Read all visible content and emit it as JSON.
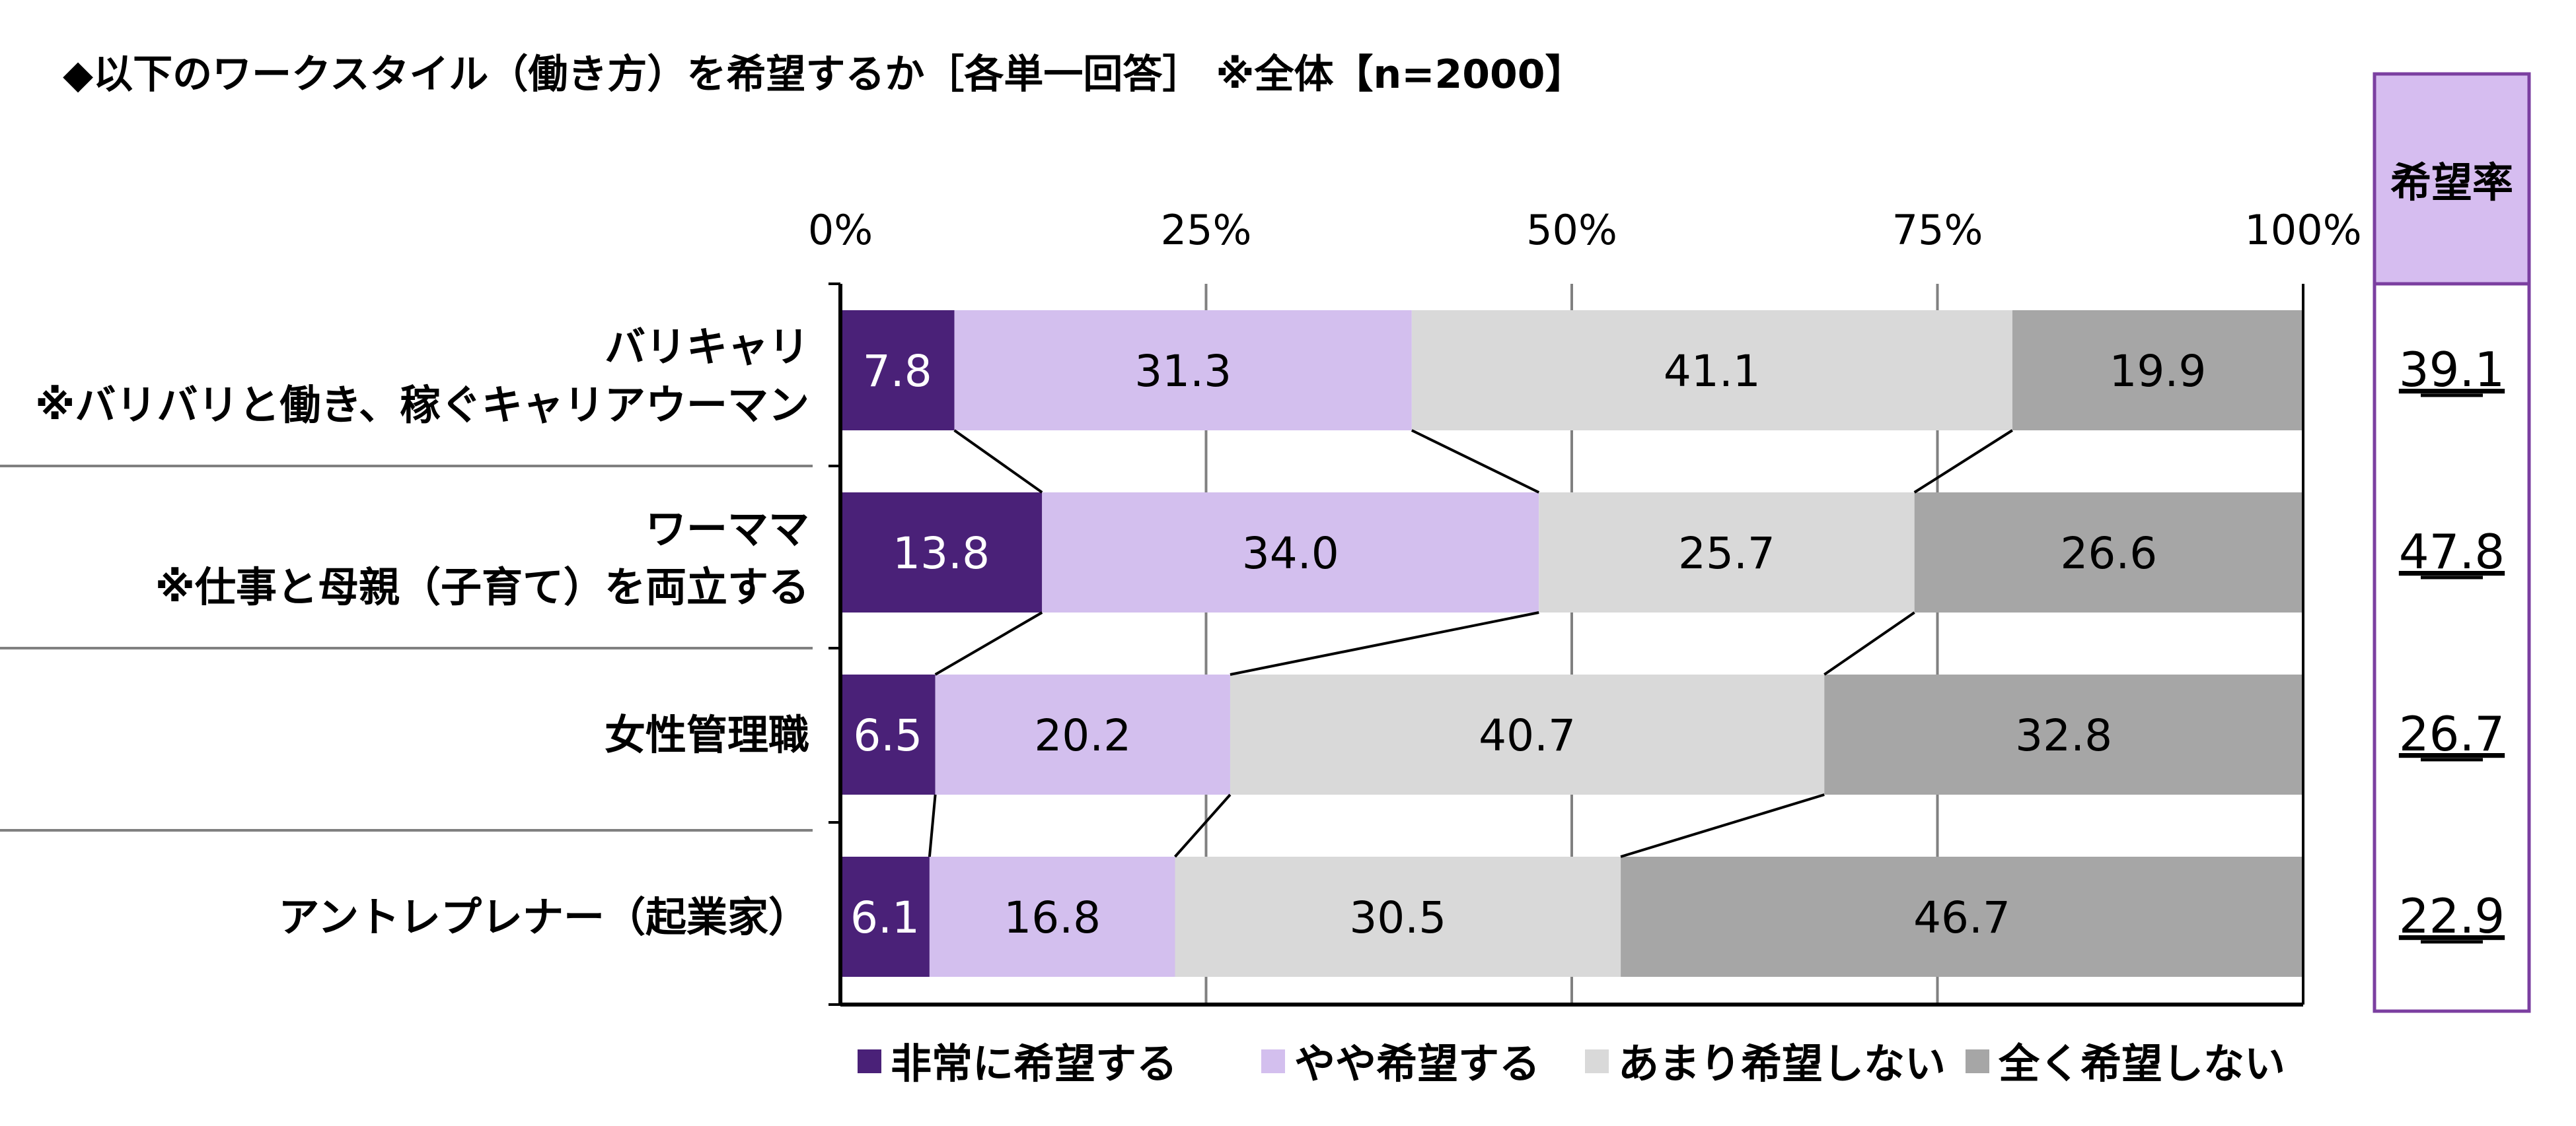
{
  "title": "◆以下のワークスタイル（働き方）を希望するか［各単一回答］ ※全体【n=2000】",
  "colors": {
    "series": [
      "#4a2178",
      "#d3bfee",
      "#d9d9d9",
      "#a6a6a6"
    ],
    "rate_header_bg": "#d6bdf0",
    "rate_border": "#7b3fa0",
    "axis": "#000000",
    "grid": "#808080",
    "connector": "#000000",
    "separator": "#808080"
  },
  "chart_data": {
    "type": "bar",
    "orientation": "horizontal",
    "stacked": true,
    "percent_stacked": true,
    "categories": [
      [
        "バリキャリ",
        "※バリバリと働き、稼ぐキャリアウーマン"
      ],
      [
        "ワーママ",
        "※仕事と母親（子育て）を両立する"
      ],
      [
        "女性管理職"
      ],
      [
        "アントレプレナー（起業家）"
      ]
    ],
    "series": [
      {
        "name": "非常に希望する",
        "values": [
          7.8,
          13.8,
          6.5,
          6.1
        ]
      },
      {
        "name": "やや希望する",
        "values": [
          31.3,
          34.0,
          20.2,
          16.8
        ]
      },
      {
        "name": "あまり希望しない",
        "values": [
          41.1,
          25.7,
          40.7,
          30.5
        ]
      },
      {
        "name": "全く希望しない",
        "values": [
          19.9,
          26.6,
          32.8,
          46.7
        ]
      }
    ],
    "value_labels": [
      [
        "7.8",
        "13.8",
        "6.5",
        "6.1"
      ],
      [
        "31.3",
        "34.0",
        "20.2",
        "16.8"
      ],
      [
        "41.1",
        "25.7",
        "40.7",
        "30.5"
      ],
      [
        "19.9",
        "26.6",
        "32.8",
        "46.7"
      ]
    ],
    "xlim": [
      0,
      100
    ],
    "ticks": [
      0,
      25,
      50,
      75,
      100
    ],
    "tick_labels": [
      "0%",
      "25%",
      "50%",
      "75%",
      "100%"
    ],
    "grid": true,
    "series_lines": true,
    "legend_position": "bottom",
    "side_table": {
      "header": "希望率",
      "values": [
        "39.1",
        "47.8",
        "26.7",
        "22.9"
      ]
    }
  }
}
